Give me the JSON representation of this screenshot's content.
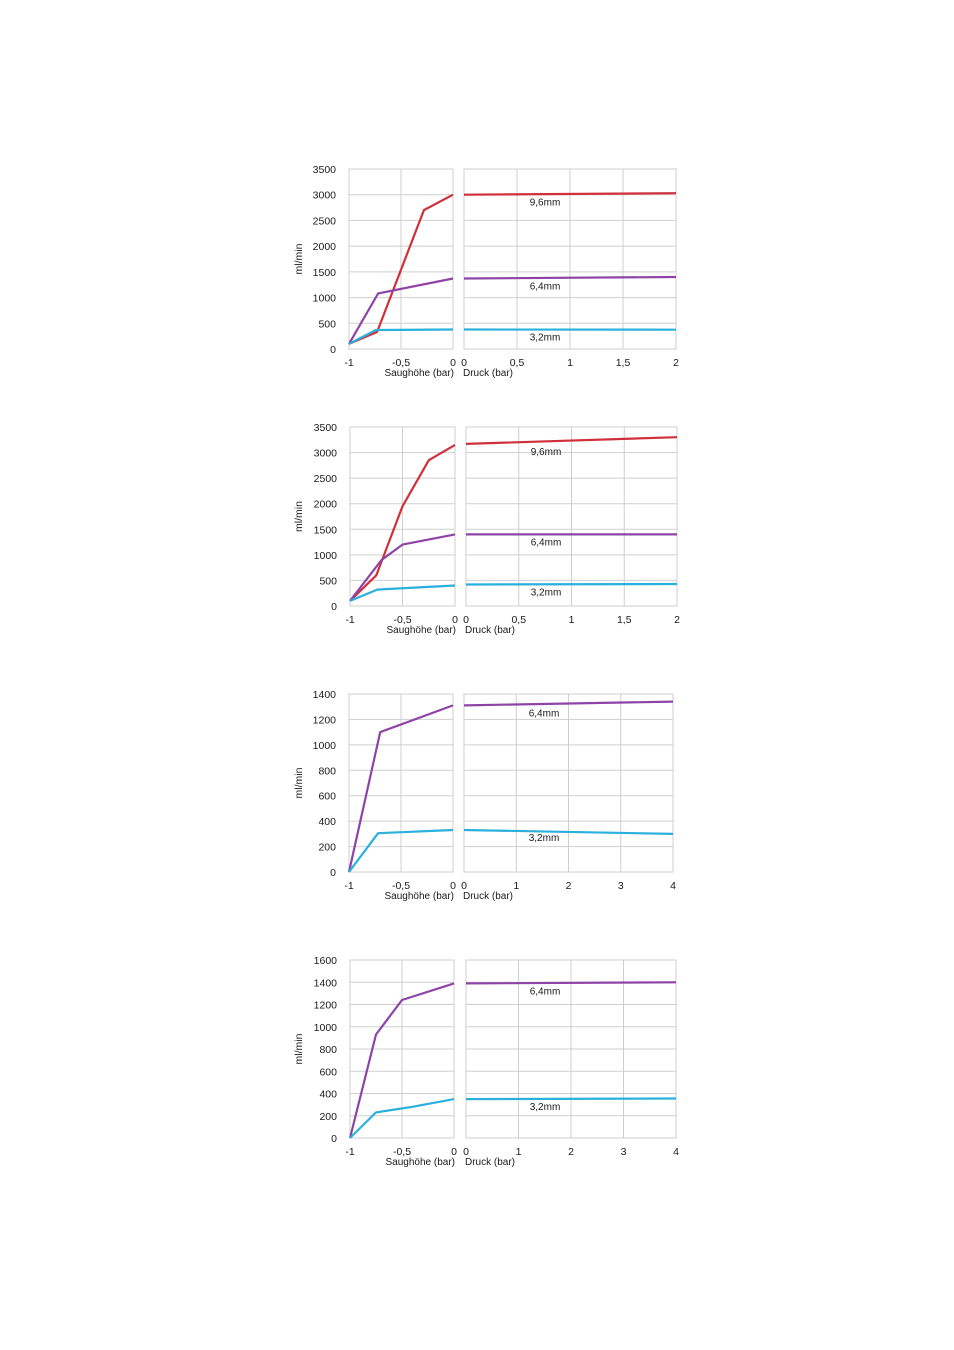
{
  "chart_data": [
    {
      "type": "line",
      "ylabel": "ml/min",
      "ylim": [
        0,
        3500
      ],
      "yticks": [
        "3500",
        "3000",
        "2500",
        "2000",
        "1500",
        "1000",
        "500",
        "0"
      ],
      "left": {
        "xlabel": "Saughöhe (bar)",
        "xlim": [
          -1,
          0
        ],
        "xticks": [
          {
            "v": -1,
            "t": "-1"
          },
          {
            "v": -0.5,
            "t": "-0,5"
          },
          {
            "v": 0,
            "t": "0"
          }
        ]
      },
      "right": {
        "xlabel": "Druck (bar)",
        "xlim": [
          0,
          2
        ],
        "xticks": [
          {
            "v": 0,
            "t": "0"
          },
          {
            "v": 0.5,
            "t": "0,5"
          },
          {
            "v": 1,
            "t": "1"
          },
          {
            "v": 1.5,
            "t": "1,5"
          },
          {
            "v": 2,
            "t": "2"
          }
        ]
      },
      "series": [
        {
          "name": "9,6mm",
          "color": "#d0303a",
          "left": [
            [
              -1,
              100
            ],
            [
              -0.73,
              330
            ],
            [
              -0.28,
              2700
            ],
            [
              0,
              3000
            ]
          ],
          "right": [
            [
              0,
              3000
            ],
            [
              2,
              3030
            ]
          ],
          "label_y": 3000
        },
        {
          "name": "6,4mm",
          "color": "#8e44a6",
          "left": [
            [
              -1,
              100
            ],
            [
              -0.72,
              1080
            ],
            [
              0,
              1370
            ]
          ],
          "right": [
            [
              0,
              1370
            ],
            [
              2,
              1400
            ]
          ],
          "label_y": 1370
        },
        {
          "name": "3,2mm",
          "color": "#2ab0dc",
          "left": [
            [
              -1,
              100
            ],
            [
              -0.74,
              370
            ],
            [
              0,
              380
            ]
          ],
          "right": [
            [
              0,
              380
            ],
            [
              2,
              375
            ]
          ],
          "label_y": 375
        }
      ]
    },
    {
      "type": "line",
      "ylabel": "ml/min",
      "ylim": [
        0,
        3500
      ],
      "yticks": [
        "3500",
        "3000",
        "2500",
        "2000",
        "1500",
        "1000",
        "500",
        "0"
      ],
      "left": {
        "xlabel": "Saughöhe (bar)",
        "xlim": [
          -1,
          0
        ],
        "xticks": [
          {
            "v": -1,
            "t": "-1"
          },
          {
            "v": -0.5,
            "t": "-0,5"
          },
          {
            "v": 0,
            "t": "0"
          }
        ]
      },
      "right": {
        "xlabel": "Druck (bar)",
        "xlim": [
          0,
          2
        ],
        "xticks": [
          {
            "v": 0,
            "t": "0"
          },
          {
            "v": 0.5,
            "t": "0,5"
          },
          {
            "v": 1,
            "t": "1"
          },
          {
            "v": 1.5,
            "t": "1,5"
          },
          {
            "v": 2,
            "t": "2"
          }
        ]
      },
      "series": [
        {
          "name": "9,6mm",
          "color": "#d0303a",
          "left": [
            [
              -1,
              100
            ],
            [
              -0.75,
              600
            ],
            [
              -0.5,
              1950
            ],
            [
              -0.25,
              2850
            ],
            [
              0,
              3150
            ]
          ],
          "right": [
            [
              0,
              3170
            ],
            [
              2,
              3300
            ]
          ],
          "label_y": 3170
        },
        {
          "name": "6,4mm",
          "color": "#8e44a6",
          "left": [
            [
              -1,
              100
            ],
            [
              -0.7,
              900
            ],
            [
              -0.5,
              1200
            ],
            [
              0,
              1400
            ]
          ],
          "right": [
            [
              0,
              1400
            ],
            [
              2,
              1400
            ]
          ],
          "label_y": 1400
        },
        {
          "name": "3,2mm",
          "color": "#2ab0dc",
          "left": [
            [
              -1,
              100
            ],
            [
              -0.74,
              320
            ],
            [
              0,
              400
            ]
          ],
          "right": [
            [
              0,
              420
            ],
            [
              2,
              430
            ]
          ],
          "label_y": 420
        }
      ]
    },
    {
      "type": "line",
      "ylabel": "ml/min",
      "ylim": [
        0,
        1400
      ],
      "yticks": [
        "1400",
        "1200",
        "1000",
        "800",
        "600",
        "400",
        "200",
        "0"
      ],
      "left": {
        "xlabel": "Saughöhe (bar)",
        "xlim": [
          -1,
          0
        ],
        "xticks": [
          {
            "v": -1,
            "t": "-1"
          },
          {
            "v": -0.5,
            "t": "-0,5"
          },
          {
            "v": 0,
            "t": "0"
          }
        ]
      },
      "right": {
        "xlabel": "Druck (bar)",
        "xlim": [
          0,
          4
        ],
        "xticks": [
          {
            "v": 0,
            "t": "0"
          },
          {
            "v": 1,
            "t": "1"
          },
          {
            "v": 2,
            "t": "2"
          },
          {
            "v": 3,
            "t": "3"
          },
          {
            "v": 4,
            "t": "4"
          }
        ]
      },
      "series": [
        {
          "name": "6,4mm",
          "color": "#8e44a6",
          "left": [
            [
              -1,
              0
            ],
            [
              -0.7,
              1100
            ],
            [
              0,
              1310
            ]
          ],
          "right": [
            [
              0,
              1310
            ],
            [
              4,
              1340
            ]
          ],
          "label_y": 1310
        },
        {
          "name": "3,2mm",
          "color": "#2ab0dc",
          "left": [
            [
              -1,
              0
            ],
            [
              -0.72,
              305
            ],
            [
              0,
              330
            ]
          ],
          "right": [
            [
              0,
              330
            ],
            [
              4,
              300
            ]
          ],
          "label_y": 330
        }
      ]
    },
    {
      "type": "line",
      "ylabel": "ml/min",
      "ylim": [
        0,
        1600
      ],
      "yticks": [
        "1600",
        "1400",
        "1200",
        "1000",
        "800",
        "600",
        "400",
        "200",
        "0"
      ],
      "left": {
        "xlabel": "Saughöhe (bar)",
        "xlim": [
          -1,
          0
        ],
        "xticks": [
          {
            "v": -1,
            "t": "-1"
          },
          {
            "v": -0.5,
            "t": "-0,5"
          },
          {
            "v": 0,
            "t": "0"
          }
        ]
      },
      "right": {
        "xlabel": "Druck (bar)",
        "xlim": [
          0,
          4
        ],
        "xticks": [
          {
            "v": 0,
            "t": "0"
          },
          {
            "v": 1,
            "t": "1"
          },
          {
            "v": 2,
            "t": "2"
          },
          {
            "v": 3,
            "t": "3"
          },
          {
            "v": 4,
            "t": "4"
          }
        ]
      },
      "series": [
        {
          "name": "6,4mm",
          "color": "#8e44a6",
          "left": [
            [
              -1,
              0
            ],
            [
              -0.75,
              930
            ],
            [
              -0.5,
              1240
            ],
            [
              0,
              1390
            ]
          ],
          "right": [
            [
              0,
              1390
            ],
            [
              4,
              1400
            ]
          ],
          "label_y": 1390
        },
        {
          "name": "3,2mm",
          "color": "#2ab0dc",
          "left": [
            [
              -1,
              0
            ],
            [
              -0.75,
              230
            ],
            [
              -0.4,
              280
            ],
            [
              0,
              350
            ]
          ],
          "right": [
            [
              0,
              350
            ],
            [
              4,
              355
            ]
          ],
          "label_y": 350
        }
      ]
    }
  ]
}
